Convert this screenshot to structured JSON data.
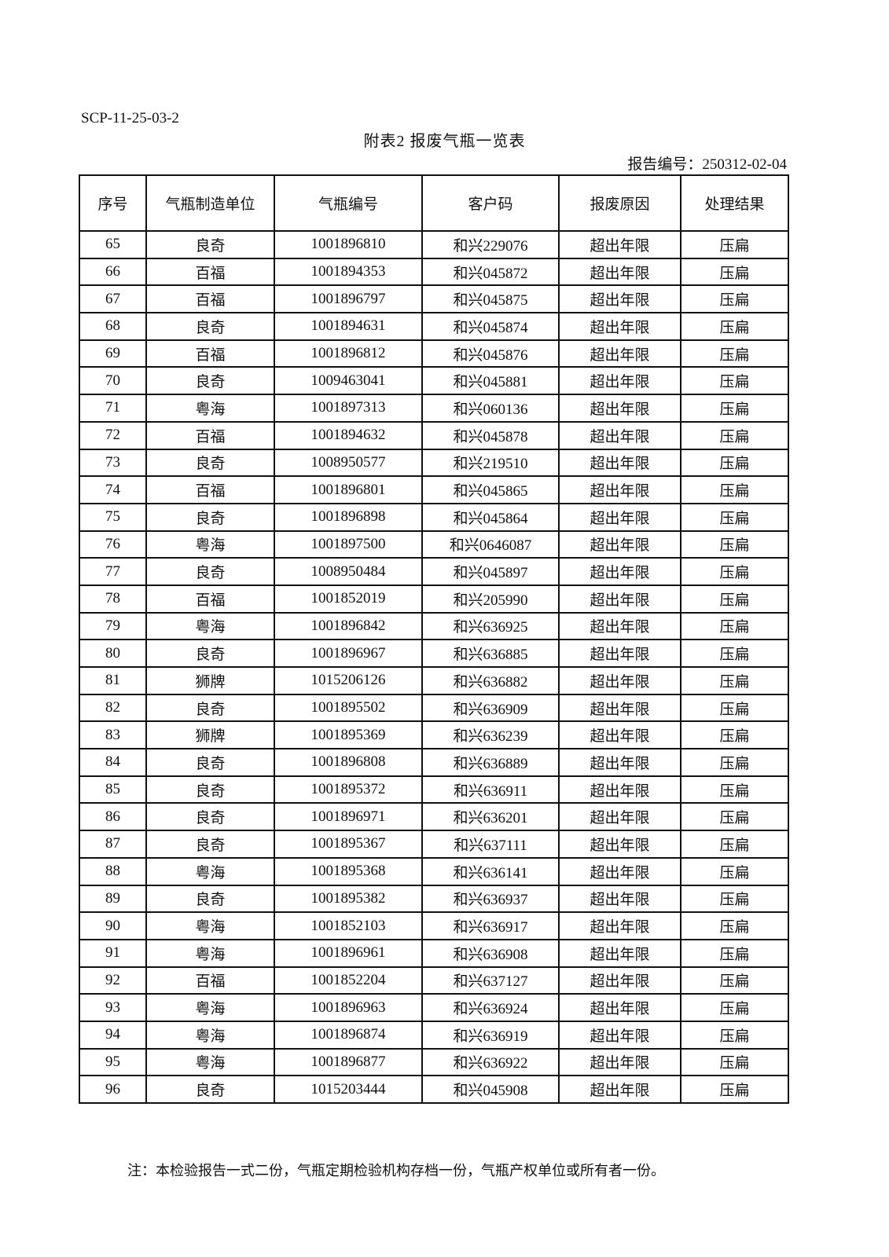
{
  "doc_code": "SCP-11-25-03-2",
  "title": "附表2   报废气瓶一览表",
  "report_number": "报告编号：250312-02-04",
  "table": {
    "headers": [
      "序号",
      "气瓶制造单位",
      "气瓶编号",
      "客户码",
      "报废原因",
      "处理结果"
    ],
    "rows": [
      [
        "65",
        "良奇",
        "1001896810",
        "和兴229076",
        "超出年限",
        "压扁"
      ],
      [
        "66",
        "百福",
        "1001894353",
        "和兴045872",
        "超出年限",
        "压扁"
      ],
      [
        "67",
        "百福",
        "1001896797",
        "和兴045875",
        "超出年限",
        "压扁"
      ],
      [
        "68",
        "良奇",
        "1001894631",
        "和兴045874",
        "超出年限",
        "压扁"
      ],
      [
        "69",
        "百福",
        "1001896812",
        "和兴045876",
        "超出年限",
        "压扁"
      ],
      [
        "70",
        "良奇",
        "1009463041",
        "和兴045881",
        "超出年限",
        "压扁"
      ],
      [
        "71",
        "粤海",
        "1001897313",
        "和兴060136",
        "超出年限",
        "压扁"
      ],
      [
        "72",
        "百福",
        "1001894632",
        "和兴045878",
        "超出年限",
        "压扁"
      ],
      [
        "73",
        "良奇",
        "1008950577",
        "和兴219510",
        "超出年限",
        "压扁"
      ],
      [
        "74",
        "百福",
        "1001896801",
        "和兴045865",
        "超出年限",
        "压扁"
      ],
      [
        "75",
        "良奇",
        "1001896898",
        "和兴045864",
        "超出年限",
        "压扁"
      ],
      [
        "76",
        "粤海",
        "1001897500",
        "和兴0646087",
        "超出年限",
        "压扁"
      ],
      [
        "77",
        "良奇",
        "1008950484",
        "和兴045897",
        "超出年限",
        "压扁"
      ],
      [
        "78",
        "百福",
        "1001852019",
        "和兴205990",
        "超出年限",
        "压扁"
      ],
      [
        "79",
        "粤海",
        "1001896842",
        "和兴636925",
        "超出年限",
        "压扁"
      ],
      [
        "80",
        "良奇",
        "1001896967",
        "和兴636885",
        "超出年限",
        "压扁"
      ],
      [
        "81",
        "狮牌",
        "1015206126",
        "和兴636882",
        "超出年限",
        "压扁"
      ],
      [
        "82",
        "良奇",
        "1001895502",
        "和兴636909",
        "超出年限",
        "压扁"
      ],
      [
        "83",
        "狮牌",
        "1001895369",
        "和兴636239",
        "超出年限",
        "压扁"
      ],
      [
        "84",
        "良奇",
        "1001896808",
        "和兴636889",
        "超出年限",
        "压扁"
      ],
      [
        "85",
        "良奇",
        "1001895372",
        "和兴636911",
        "超出年限",
        "压扁"
      ],
      [
        "86",
        "良奇",
        "1001896971",
        "和兴636201",
        "超出年限",
        "压扁"
      ],
      [
        "87",
        "良奇",
        "1001895367",
        "和兴637111",
        "超出年限",
        "压扁"
      ],
      [
        "88",
        "粤海",
        "1001895368",
        "和兴636141",
        "超出年限",
        "压扁"
      ],
      [
        "89",
        "良奇",
        "1001895382",
        "和兴636937",
        "超出年限",
        "压扁"
      ],
      [
        "90",
        "粤海",
        "1001852103",
        "和兴636917",
        "超出年限",
        "压扁"
      ],
      [
        "91",
        "粤海",
        "1001896961",
        "和兴636908",
        "超出年限",
        "压扁"
      ],
      [
        "92",
        "百福",
        "1001852204",
        "和兴637127",
        "超出年限",
        "压扁"
      ],
      [
        "93",
        "粤海",
        "1001896963",
        "和兴636924",
        "超出年限",
        "压扁"
      ],
      [
        "94",
        "粤海",
        "1001896874",
        "和兴636919",
        "超出年限",
        "压扁"
      ],
      [
        "95",
        "粤海",
        "1001896877",
        "和兴636922",
        "超出年限",
        "压扁"
      ],
      [
        "96",
        "良奇",
        "1015203444",
        "和兴045908",
        "超出年限",
        "压扁"
      ]
    ]
  },
  "note": "注：本检验报告一式二份，气瓶定期检验机构存档一份，气瓶产权单位或所有者一份。"
}
